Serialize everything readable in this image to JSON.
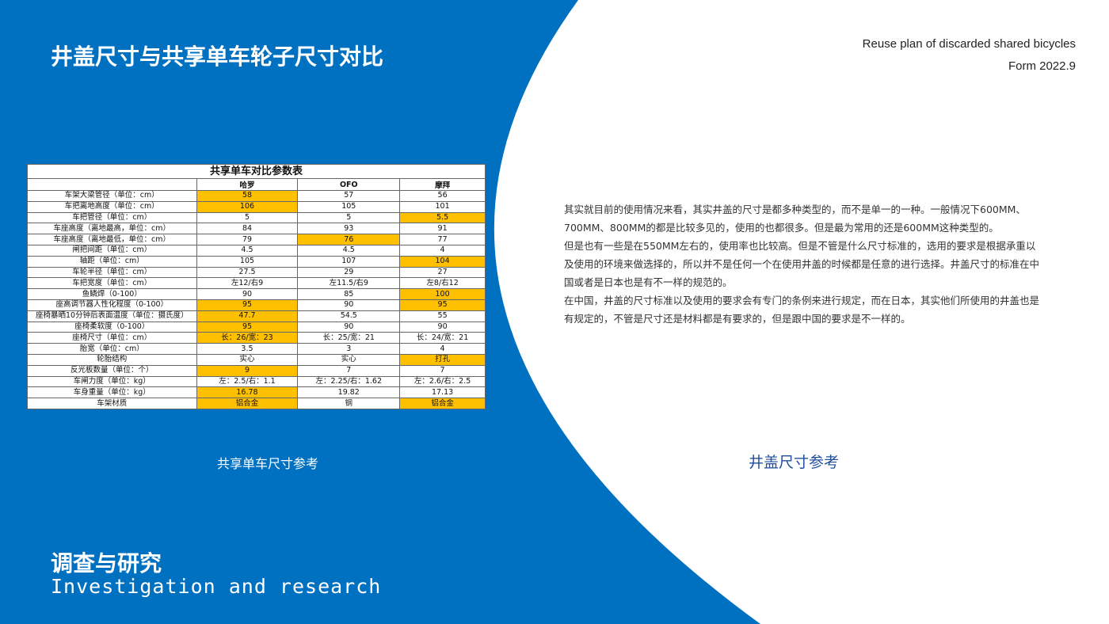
{
  "colors": {
    "background": "#0070c0",
    "highlight": "#ffc000",
    "caption_right": "#1f4e9c"
  },
  "header": {
    "title": "井盖尺寸与共享单车轮子尺寸对比",
    "subtitle_line1": "Reuse plan of discarded shared bicycles",
    "subtitle_line2": "Form 2022.9"
  },
  "table": {
    "title": "共享单车对比参数表",
    "columns": [
      "",
      "哈罗",
      "OFO",
      "摩拜"
    ],
    "rows": [
      {
        "label": "车架大梁管径（单位：cm）",
        "values": [
          "58",
          "57",
          "56"
        ],
        "highlight": [
          0
        ]
      },
      {
        "label": "车把离地高度（单位：cm）",
        "values": [
          "106",
          "105",
          "101"
        ],
        "highlight": [
          0
        ]
      },
      {
        "label": "车把管径（单位：cm）",
        "values": [
          "5",
          "5",
          "5.5"
        ],
        "highlight": [
          2
        ]
      },
      {
        "label": "车座高度（离地最高，单位：cm）",
        "values": [
          "84",
          "93",
          "91"
        ],
        "highlight": []
      },
      {
        "label": "车座高度（离地最低，单位：cm）",
        "values": [
          "79",
          "76",
          "77"
        ],
        "highlight": [
          1
        ]
      },
      {
        "label": "闸把间距（单位：cm）",
        "values": [
          "4.5",
          "4.5",
          "4"
        ],
        "highlight": []
      },
      {
        "label": "轴距（单位：cm）",
        "values": [
          "105",
          "107",
          "104"
        ],
        "highlight": [
          2
        ]
      },
      {
        "label": "车轮半径（单位：cm）",
        "values": [
          "27.5",
          "29",
          "27"
        ],
        "highlight": []
      },
      {
        "label": "车把宽度（单位：cm）",
        "values": [
          "左12/右9",
          "左11.5/右9",
          "左8/右12"
        ],
        "highlight": []
      },
      {
        "label": "鱼鳞焊（0-100）",
        "values": [
          "90",
          "85",
          "100"
        ],
        "highlight": [
          2
        ]
      },
      {
        "label": "座高调节器人性化程度（0-100）",
        "values": [
          "95",
          "90",
          "95"
        ],
        "highlight": [
          0,
          2
        ]
      },
      {
        "label": "座椅暴晒10分钟后表面温度（单位：摄氏度）",
        "values": [
          "47.7",
          "54.5",
          "55"
        ],
        "highlight": [
          0
        ]
      },
      {
        "label": "座椅柔软度（0-100）",
        "values": [
          "95",
          "90",
          "90"
        ],
        "highlight": [
          0
        ]
      },
      {
        "label": "座椅尺寸（单位：cm）",
        "values": [
          "长：26/宽：23",
          "长：25/宽：21",
          "长：24/宽：21"
        ],
        "highlight": [
          0
        ]
      },
      {
        "label": "胎宽（单位：cm）",
        "values": [
          "3.5",
          "3",
          "4"
        ],
        "highlight": []
      },
      {
        "label": "轮胎结构",
        "values": [
          "实心",
          "实心",
          "打孔"
        ],
        "highlight": [
          2
        ]
      },
      {
        "label": "反光板数量（单位：个）",
        "values": [
          "9",
          "7",
          "7"
        ],
        "highlight": [
          0
        ]
      },
      {
        "label": "车闸力度（单位：kg）",
        "values": [
          "左：2.5/右：1.1",
          "左：2.25/右：1.62",
          "左：2.6/右：2.5"
        ],
        "highlight": []
      },
      {
        "label": "车身重量（单位：kg）",
        "values": [
          "16.78",
          "19.82",
          "17.13"
        ],
        "highlight": [
          0
        ]
      },
      {
        "label": "车架材质",
        "values": [
          "铝合金",
          "钢",
          "铝合金"
        ],
        "highlight": [
          0,
          2
        ]
      }
    ]
  },
  "captions": {
    "left": "共享单车尺寸参考",
    "right": "井盖尺寸参考"
  },
  "paragraphs": [
    "其实就目前的使用情况来看，其实井盖的尺寸是都多种类型的，而不是单一的一种。一般情况下600MM、700MM、800MM的都是比较多见的，使用的也都很多。但是最为常用的还是600MM这种类型的。",
    "但是也有一些是在550MM左右的，使用率也比较高。但是不管是什么尺寸标准的，选用的要求是根据承重以及使用的环境来做选择的，所以并不是任何一个在使用井盖的时候都是任意的进行选择。井盖尺寸的标准在中国或者是日本也是有不一样的规范的。",
    "在中国，井盖的尺寸标准以及使用的要求会有专门的条例来进行规定，而在日本，其实他们所使用的井盖也是有规定的，不管是尺寸还是材料都是有要求的，但是跟中国的要求是不一样的。"
  ],
  "footer": {
    "title_cn": "调查与研究",
    "title_en": "Investigation and research"
  }
}
